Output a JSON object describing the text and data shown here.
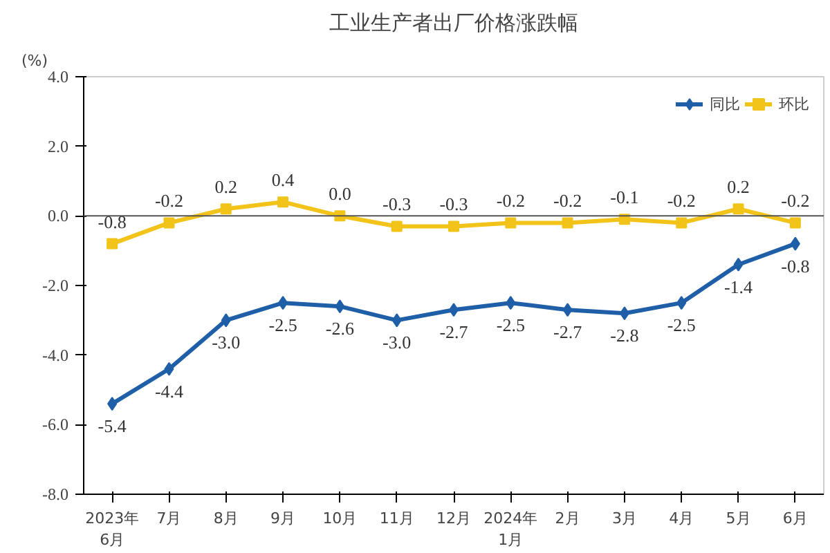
{
  "chart_data": {
    "type": "line",
    "title": "工业生产者出厂价格涨跌幅",
    "ylabel": "(%)",
    "categories": [
      "2023年\n6月",
      "7月",
      "8月",
      "9月",
      "10月",
      "11月",
      "12月",
      "2024年\n1月",
      "2月",
      "3月",
      "4月",
      "5月",
      "6月"
    ],
    "series": [
      {
        "name": "同比",
        "color": "#1f5fa8",
        "marker": "diamond",
        "values": [
          -5.4,
          -4.4,
          -3.0,
          -2.5,
          -2.6,
          -3.0,
          -2.7,
          -2.5,
          -2.7,
          -2.8,
          -2.5,
          -1.4,
          -0.8
        ],
        "value_labels": [
          "-5.4",
          "-4.4",
          "-3.0",
          "-2.5",
          "-2.6",
          "-3.0",
          "-2.7",
          "-2.5",
          "-2.7",
          "-2.8",
          "-2.5",
          "-1.4",
          "-0.8"
        ]
      },
      {
        "name": "环比",
        "color": "#f2c318",
        "marker": "square",
        "values": [
          -0.8,
          -0.2,
          0.2,
          0.4,
          0.0,
          -0.3,
          -0.3,
          -0.2,
          -0.2,
          -0.1,
          -0.2,
          0.2,
          -0.2
        ],
        "value_labels": [
          "-0.8",
          "-0.2",
          "0.2",
          "0.4",
          "0.0",
          "-0.3",
          "-0.3",
          "-0.2",
          "-0.2",
          "-0.1",
          "-0.2",
          "0.2",
          "-0.2"
        ]
      }
    ],
    "ylim": [
      -8.0,
      4.0
    ],
    "yticks": [
      {
        "value": -8,
        "label": "-8.0"
      },
      {
        "value": -6,
        "label": "-6.0"
      },
      {
        "value": -4,
        "label": "-4.0"
      },
      {
        "value": -2,
        "label": "-2.0"
      },
      {
        "value": 0,
        "label": "0.0"
      },
      {
        "value": 2,
        "label": "2.0"
      },
      {
        "value": 4,
        "label": "4.0"
      }
    ],
    "ref_lines": [
      {
        "axis": "y",
        "value": 0,
        "color": "#555555"
      }
    ],
    "legend": "top right",
    "grid": false,
    "line_style": "solid"
  }
}
